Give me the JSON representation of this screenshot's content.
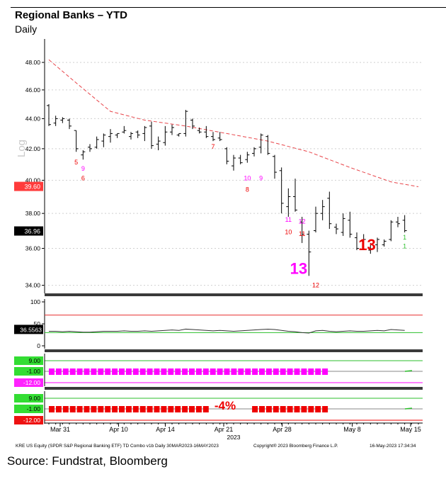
{
  "title": "Regional Banks – YTD",
  "subtitle": "Daily",
  "source": "Source: Fundstrat, Bloomberg",
  "log_label": "Log",
  "footer": {
    "left": "KRE US Equity (SPDR S&P Regional Banking ETF) TD Combo v1b  Daily 30MAR2023-16MAY2023",
    "mid": "Copyright® 2023 Bloomberg Finance L.P.",
    "right": "16-May-2023 17:34:34"
  },
  "colors": {
    "price_bar": "#000000",
    "moving_average": "#e8454a",
    "rsi_line": "#333333",
    "overbought": "#e83030",
    "oversold": "#2bbf2b",
    "setup_magenta": "#ff00ff",
    "setup_red": "#ee0000",
    "divider": "#3a3a3a"
  },
  "chart_data": [
    {
      "type": "ohlc",
      "scale": "log",
      "title": "Regional Banks – YTD",
      "subtitle": "Daily",
      "x_tick_labels": [
        "Mar 31",
        "Apr 10",
        "Apr 14",
        "Apr 21",
        "Apr 28",
        "May 8",
        "May 15"
      ],
      "x_tick_positions": [
        0,
        5,
        9,
        14,
        19,
        25,
        30
      ],
      "year_label": "2023",
      "ylim": [
        33.8,
        49.5
      ],
      "y_ticks": [
        "48.00",
        "46.00",
        "44.00",
        "42.00",
        "40.00",
        "38.00",
        "36.00",
        "34.00"
      ],
      "last_price_label": "36.96",
      "moving_average_label": "39.60",
      "bars": [
        [
          0,
          45.0,
          43.5,
          44.9,
          43.6
        ],
        [
          1,
          44.2,
          43.5,
          43.7,
          44.0
        ],
        [
          2,
          44.1,
          43.7,
          43.9,
          44.0
        ],
        [
          3,
          44.0,
          43.3,
          43.9,
          43.5
        ],
        [
          4,
          43.2,
          41.8,
          43.2,
          42.0
        ],
        [
          5,
          41.9,
          41.3,
          41.6,
          41.8
        ],
        [
          6,
          42.3,
          41.8,
          42.1,
          42.0
        ],
        [
          7,
          42.8,
          42.0,
          42.1,
          42.6
        ],
        [
          8,
          43.0,
          42.1,
          42.5,
          42.9
        ],
        [
          9,
          43.3,
          42.4,
          42.8,
          43.0
        ],
        [
          10,
          43.0,
          42.7,
          42.9,
          43.0
        ],
        [
          11,
          43.5,
          43.0,
          43.1,
          43.2
        ],
        [
          12,
          43.1,
          42.6,
          42.8,
          43.0
        ],
        [
          13,
          43.2,
          42.7,
          43.1,
          42.9
        ],
        [
          14,
          43.5,
          42.5,
          43.0,
          43.4
        ],
        [
          15,
          43.8,
          42.0,
          43.5,
          42.2
        ],
        [
          16,
          42.8,
          41.9,
          42.3,
          42.5
        ],
        [
          17,
          43.5,
          42.2,
          42.4,
          43.1
        ],
        [
          18,
          43.6,
          42.9,
          43.1,
          43.4
        ],
        [
          19,
          43.0,
          42.8,
          42.9,
          43.0
        ],
        [
          20,
          44.6,
          42.8,
          43.0,
          44.5
        ],
        [
          21,
          44.0,
          43.3,
          43.9,
          43.5
        ],
        [
          22,
          43.4,
          43.0,
          43.2,
          43.1
        ],
        [
          23,
          43.5,
          42.7,
          43.1,
          42.8
        ],
        [
          24,
          43.1,
          42.5,
          42.8,
          42.6
        ],
        [
          25,
          43.1,
          42.5,
          42.7,
          42.6
        ],
        [
          26,
          42.1,
          41.0,
          42.0,
          41.2
        ],
        [
          27,
          41.6,
          40.6,
          40.9,
          41.4
        ],
        [
          28,
          41.6,
          41.0,
          41.4,
          41.1
        ],
        [
          29,
          41.8,
          41.1,
          41.3,
          41.6
        ],
        [
          30,
          42.1,
          41.5,
          41.7,
          42.0
        ],
        [
          31,
          43.0,
          41.7,
          42.1,
          42.9
        ],
        [
          32,
          42.9,
          41.6,
          42.8,
          41.7
        ],
        [
          33,
          41.6,
          40.1,
          41.5,
          40.5
        ],
        [
          34,
          40.8,
          38.0,
          40.6,
          38.6
        ],
        [
          35,
          39.5,
          37.8,
          38.4,
          39.0
        ],
        [
          36,
          40.1,
          38.1,
          39.0,
          38.2
        ],
        [
          37,
          37.8,
          36.3,
          37.5,
          36.8
        ],
        [
          38,
          37.0,
          34.5,
          36.8,
          35.8
        ],
        [
          39,
          38.4,
          36.9,
          37.0,
          38.0
        ],
        [
          40,
          38.8,
          37.6,
          38.0,
          38.4
        ],
        [
          41,
          39.3,
          37.1,
          38.9,
          37.4
        ],
        [
          42,
          37.4,
          36.8,
          37.2,
          37.1
        ],
        [
          43,
          38.0,
          36.7,
          36.9,
          37.7
        ],
        [
          44,
          38.1,
          36.6,
          37.6,
          36.8
        ],
        [
          45,
          36.9,
          35.9,
          36.6,
          36.0
        ],
        [
          46,
          36.8,
          35.9,
          36.4,
          36.5
        ],
        [
          47,
          36.3,
          35.7,
          35.9,
          36.2
        ],
        [
          48,
          36.6,
          35.8,
          36.2,
          36.5
        ],
        [
          49,
          36.5,
          36.1,
          36.2,
          36.4
        ],
        [
          50,
          37.6,
          36.4,
          36.5,
          37.5
        ],
        [
          51,
          37.8,
          37.2,
          37.5,
          37.4
        ],
        [
          52,
          37.9,
          36.9,
          37.6,
          37.0
        ]
      ],
      "moving_average": [
        [
          0,
          48.2
        ],
        [
          4,
          46.5
        ],
        [
          9,
          44.5
        ],
        [
          14,
          43.9
        ],
        [
          20,
          43.5
        ],
        [
          26,
          43.0
        ],
        [
          32,
          42.5
        ],
        [
          38,
          41.8
        ],
        [
          44,
          40.8
        ],
        [
          50,
          39.9
        ],
        [
          54,
          39.6
        ]
      ],
      "td_counts": [
        {
          "label": "5",
          "x": 4,
          "y": 41.0,
          "color": "red"
        },
        {
          "label": "9",
          "x": 5,
          "y": 40.6,
          "color": "magenta"
        },
        {
          "label": "6",
          "x": 5,
          "y": 40.0,
          "color": "red"
        },
        {
          "label": "7",
          "x": 24,
          "y": 42.0,
          "color": "red"
        },
        {
          "label": "10",
          "x": 29,
          "y": 40.0,
          "color": "magenta"
        },
        {
          "label": "9",
          "x": 31,
          "y": 40.0,
          "color": "magenta"
        },
        {
          "label": "8",
          "x": 29,
          "y": 39.3,
          "color": "red"
        },
        {
          "label": "11",
          "x": 35,
          "y": 37.5,
          "color": "magenta"
        },
        {
          "label": "12",
          "x": 37,
          "y": 37.4,
          "color": "magenta"
        },
        {
          "label": "10",
          "x": 35,
          "y": 36.8,
          "color": "red"
        },
        {
          "label": "11",
          "x": 37,
          "y": 36.7,
          "color": "red"
        },
        {
          "label": "12",
          "x": 39,
          "y": 33.9,
          "color": "red"
        },
        {
          "label": "1",
          "x": 52,
          "y": 36.5,
          "color": "green"
        },
        {
          "label": "1",
          "x": 52,
          "y": 36.0,
          "color": "green"
        }
      ],
      "annotations": [
        {
          "label": "13",
          "x": 36.5,
          "y": 34.6,
          "color": "magenta"
        },
        {
          "label": "13",
          "x": 46.5,
          "y": 35.9,
          "color": "red"
        }
      ]
    },
    {
      "type": "line",
      "name": "RSI",
      "ylim": [
        0,
        100
      ],
      "y_ticks": [
        "100",
        "50",
        "0"
      ],
      "last_value_label": "36.5563",
      "overbought": 70,
      "oversold": 30,
      "values": [
        33,
        33,
        32,
        33,
        32,
        31,
        31,
        32,
        33,
        33,
        33,
        34,
        33,
        33,
        34,
        33,
        34,
        35,
        36,
        35,
        38,
        37,
        36,
        35,
        34,
        35,
        34,
        33,
        34,
        35,
        36,
        37,
        38,
        37,
        35,
        33,
        32,
        30,
        29,
        34,
        35,
        33,
        32,
        33,
        34,
        33,
        33,
        34,
        35,
        34,
        37,
        36,
        35
      ]
    },
    {
      "type": "bar",
      "name": "TD Combo oscillator 1",
      "y_labels": [
        "9.00",
        "-1.00",
        "-12.00"
      ],
      "bars": 40,
      "color": "magenta"
    },
    {
      "type": "bar",
      "name": "TD Combo oscillator 2",
      "y_labels": [
        "9.00",
        "-1.00",
        "-12.00"
      ],
      "bars": 40,
      "color": "red",
      "annotation": "-4%"
    }
  ]
}
